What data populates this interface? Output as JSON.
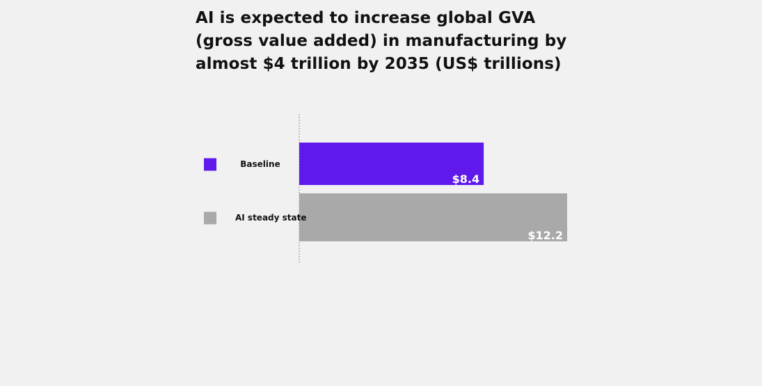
{
  "chart_data": {
    "type": "bar",
    "orientation": "horizontal",
    "title": "AI is expected to increase global GVA (gross value added) in manufacturing by almost $4 trillion by 2035 (US$ trillions)",
    "categories": [
      "Baseline",
      "AI steady state"
    ],
    "values": [
      8.4,
      12.2
    ],
    "value_labels": [
      "$8.4",
      "$12.2"
    ],
    "colors": [
      "#5f1aeb",
      "#a9a9a9"
    ],
    "xlim": [
      0,
      12.2
    ],
    "grid": false,
    "legend": "left"
  }
}
